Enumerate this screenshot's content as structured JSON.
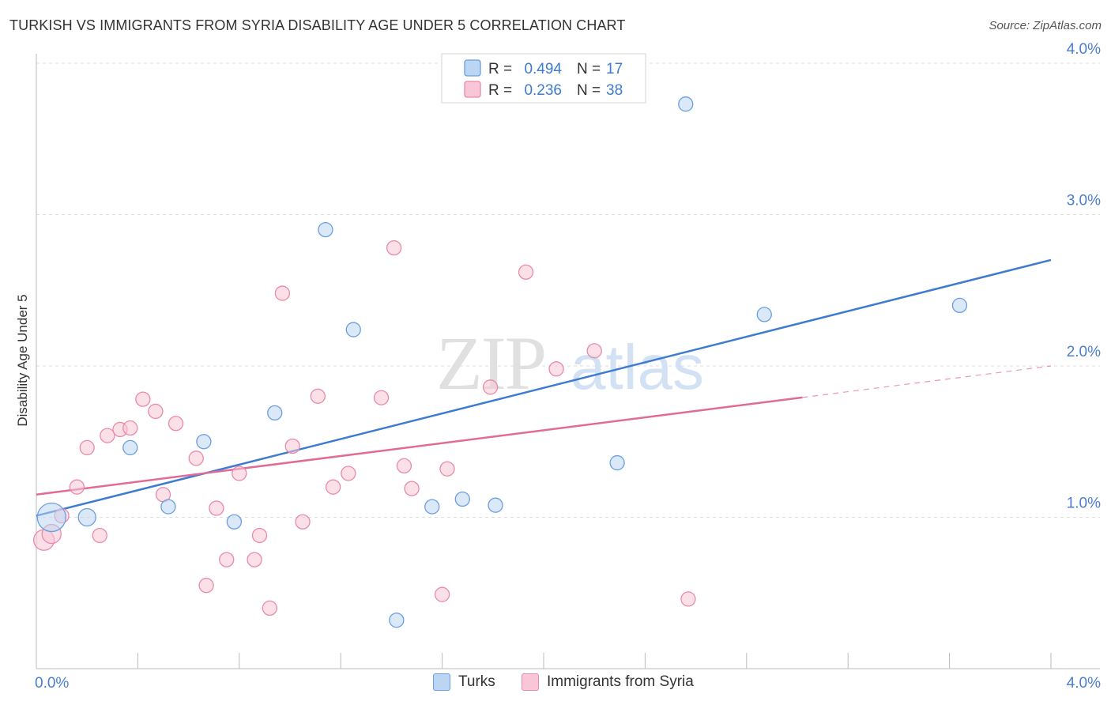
{
  "title": "TURKISH VS IMMIGRANTS FROM SYRIA DISABILITY AGE UNDER 5 CORRELATION CHART",
  "source": "Source: ZipAtlas.com",
  "watermark": {
    "zip": "ZIP",
    "atlas": "atlas"
  },
  "chart_data": {
    "type": "scatter",
    "title": "TURKISH VS IMMIGRANTS FROM SYRIA DISABILITY AGE UNDER 5 CORRELATION CHART",
    "xlabel": "",
    "ylabel": "Disability Age Under 5",
    "xlim": [
      0.0,
      4.0
    ],
    "ylim": [
      0.0,
      4.0
    ],
    "x_tick_labels": {
      "left": "0.0%",
      "right": "4.0%"
    },
    "y_ticks": [
      {
        "value": 1.0,
        "label": "1.0%"
      },
      {
        "value": 2.0,
        "label": "2.0%"
      },
      {
        "value": 3.0,
        "label": "3.0%"
      },
      {
        "value": 4.0,
        "label": "4.0%"
      }
    ],
    "grid": true,
    "legend": {
      "placement": "top-center",
      "entries": [
        {
          "r_label": "R =",
          "r": "0.494",
          "n_label": "N =",
          "n": "17"
        },
        {
          "r_label": "R =",
          "r": "0.236",
          "n_label": "N =",
          "n": "38"
        }
      ]
    },
    "series": [
      {
        "name": "Turks",
        "color": "#6a9fdf",
        "fill": "#bcd5f3",
        "line_color": "#3d7bd1",
        "trend": {
          "x0": 0.0,
          "y0": 1.01,
          "x1": 4.0,
          "y1": 2.7,
          "dashed_from": null
        },
        "points": [
          [
            0.06,
            1.0,
            18
          ],
          [
            0.2,
            1.0,
            11
          ],
          [
            0.37,
            1.46,
            9
          ],
          [
            0.52,
            1.07,
            9
          ],
          [
            0.66,
            1.5,
            9
          ],
          [
            0.78,
            0.97,
            9
          ],
          [
            0.94,
            1.69,
            9
          ],
          [
            1.14,
            2.9,
            9
          ],
          [
            1.25,
            2.24,
            9
          ],
          [
            1.42,
            0.32,
            9
          ],
          [
            1.56,
            1.07,
            9
          ],
          [
            1.68,
            1.12,
            9
          ],
          [
            1.81,
            1.08,
            9
          ],
          [
            2.29,
            1.36,
            9
          ],
          [
            2.56,
            3.73,
            9
          ],
          [
            2.87,
            2.34,
            9
          ],
          [
            3.64,
            2.4,
            9
          ]
        ]
      },
      {
        "name": "Immigrants from Syria",
        "color": "#e88aa9",
        "fill": "#f8c6d6",
        "line_color": "#e06c95",
        "trend": {
          "x0": 0.0,
          "y0": 1.15,
          "x1": 4.0,
          "y1": 2.0,
          "dashed_from": 3.02
        },
        "points": [
          [
            0.03,
            0.85,
            13
          ],
          [
            0.06,
            0.89,
            12
          ],
          [
            0.1,
            1.01,
            9
          ],
          [
            0.16,
            1.2,
            9
          ],
          [
            0.2,
            1.46,
            9
          ],
          [
            0.25,
            0.88,
            9
          ],
          [
            0.28,
            1.54,
            9
          ],
          [
            0.33,
            1.58,
            9
          ],
          [
            0.37,
            1.59,
            9
          ],
          [
            0.42,
            1.78,
            9
          ],
          [
            0.47,
            1.7,
            9
          ],
          [
            0.5,
            1.15,
            9
          ],
          [
            0.55,
            1.62,
            9
          ],
          [
            0.63,
            1.39,
            9
          ],
          [
            0.67,
            0.55,
            9
          ],
          [
            0.71,
            1.06,
            9
          ],
          [
            0.75,
            0.72,
            9
          ],
          [
            0.8,
            1.29,
            9
          ],
          [
            0.86,
            0.72,
            9
          ],
          [
            0.88,
            0.88,
            9
          ],
          [
            0.92,
            0.4,
            9
          ],
          [
            0.97,
            2.48,
            9
          ],
          [
            1.01,
            1.47,
            9
          ],
          [
            1.05,
            0.97,
            9
          ],
          [
            1.11,
            1.8,
            9
          ],
          [
            1.17,
            1.2,
            9
          ],
          [
            1.23,
            1.29,
            9
          ],
          [
            1.36,
            1.79,
            9
          ],
          [
            1.41,
            2.78,
            9
          ],
          [
            1.45,
            1.34,
            9
          ],
          [
            1.48,
            1.19,
            9
          ],
          [
            1.6,
            0.49,
            9
          ],
          [
            1.62,
            1.32,
            9
          ],
          [
            1.79,
            1.86,
            9
          ],
          [
            1.93,
            2.62,
            9
          ],
          [
            2.05,
            1.98,
            9
          ],
          [
            2.2,
            2.1,
            9
          ],
          [
            2.57,
            0.46,
            9
          ]
        ]
      }
    ]
  }
}
